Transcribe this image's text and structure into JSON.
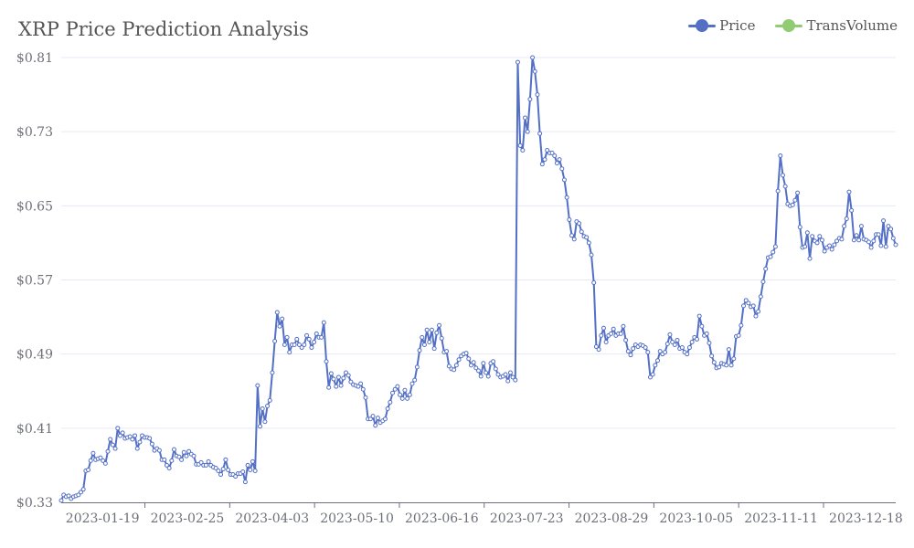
{
  "title": "XRP Price Prediction Analysis",
  "legend": [
    {
      "name": "Price",
      "color": "#5470c6"
    },
    {
      "name": "TransVolume",
      "color": "#91cc75"
    }
  ],
  "chart_data": {
    "type": "line",
    "title": "XRP Price Prediction Analysis",
    "ylim": [
      0.33,
      0.81
    ],
    "y_ticks": [
      "$0.33",
      "$0.41",
      "$0.49",
      "$0.57",
      "$0.65",
      "$0.73",
      "$0.81"
    ],
    "y_tick_values": [
      0.33,
      0.41,
      0.49,
      0.57,
      0.65,
      0.73,
      0.81
    ],
    "x_ticks": [
      "2023-01-19",
      "2023-02-25",
      "2023-04-03",
      "2023-05-10",
      "2023-06-16",
      "2023-07-23",
      "2023-08-29",
      "2023-10-05",
      "2023-11-11",
      "2023-12-18"
    ],
    "x_start": "2023-01-01",
    "x_end": "2023-12-31",
    "grid": true,
    "legend_position": "top-right",
    "series": [
      {
        "name": "Price",
        "color": "#5470c6",
        "values": [
          0.332,
          0.338,
          0.336,
          0.337,
          0.334,
          0.336,
          0.337,
          0.338,
          0.341,
          0.344,
          0.364,
          0.365,
          0.375,
          0.383,
          0.376,
          0.377,
          0.378,
          0.375,
          0.372,
          0.385,
          0.398,
          0.392,
          0.388,
          0.41,
          0.402,
          0.405,
          0.399,
          0.4,
          0.401,
          0.398,
          0.402,
          0.388,
          0.395,
          0.402,
          0.4,
          0.4,
          0.399,
          0.393,
          0.386,
          0.388,
          0.386,
          0.376,
          0.376,
          0.37,
          0.367,
          0.375,
          0.387,
          0.38,
          0.379,
          0.376,
          0.384,
          0.38,
          0.385,
          0.382,
          0.38,
          0.371,
          0.371,
          0.373,
          0.37,
          0.37,
          0.374,
          0.37,
          0.368,
          0.367,
          0.364,
          0.36,
          0.366,
          0.376,
          0.365,
          0.36,
          0.36,
          0.358,
          0.361,
          0.361,
          0.363,
          0.352,
          0.37,
          0.365,
          0.374,
          0.364,
          0.456,
          0.412,
          0.431,
          0.417,
          0.434,
          0.44,
          0.47,
          0.504,
          0.535,
          0.52,
          0.528,
          0.5,
          0.508,
          0.492,
          0.5,
          0.5,
          0.506,
          0.5,
          0.497,
          0.5,
          0.51,
          0.506,
          0.497,
          0.503,
          0.512,
          0.508,
          0.508,
          0.524,
          0.482,
          0.454,
          0.469,
          0.463,
          0.455,
          0.465,
          0.456,
          0.464,
          0.47,
          0.467,
          0.46,
          0.457,
          0.456,
          0.455,
          0.458,
          0.452,
          0.443,
          0.42,
          0.42,
          0.423,
          0.413,
          0.421,
          0.416,
          0.418,
          0.42,
          0.431,
          0.438,
          0.448,
          0.452,
          0.455,
          0.446,
          0.442,
          0.451,
          0.442,
          0.446,
          0.458,
          0.462,
          0.476,
          0.494,
          0.508,
          0.5,
          0.516,
          0.503,
          0.516,
          0.496,
          0.513,
          0.521,
          0.507,
          0.492,
          0.493,
          0.477,
          0.474,
          0.473,
          0.478,
          0.484,
          0.488,
          0.49,
          0.491,
          0.485,
          0.478,
          0.481,
          0.475,
          0.472,
          0.466,
          0.48,
          0.47,
          0.466,
          0.48,
          0.482,
          0.474,
          0.468,
          0.465,
          0.466,
          0.468,
          0.461,
          0.47,
          0.465,
          0.462,
          0.805,
          0.715,
          0.71,
          0.745,
          0.73,
          0.765,
          0.81,
          0.795,
          0.77,
          0.728,
          0.695,
          0.7,
          0.71,
          0.707,
          0.707,
          0.704,
          0.696,
          0.7,
          0.69,
          0.678,
          0.659,
          0.635,
          0.618,
          0.614,
          0.633,
          0.631,
          0.622,
          0.617,
          0.616,
          0.61,
          0.597,
          0.567,
          0.498,
          0.495,
          0.51,
          0.518,
          0.503,
          0.51,
          0.512,
          0.517,
          0.51,
          0.512,
          0.512,
          0.52,
          0.505,
          0.493,
          0.489,
          0.496,
          0.5,
          0.498,
          0.5,
          0.499,
          0.497,
          0.492,
          0.465,
          0.468,
          0.478,
          0.483,
          0.493,
          0.49,
          0.492,
          0.501,
          0.511,
          0.503,
          0.5,
          0.505,
          0.496,
          0.497,
          0.492,
          0.49,
          0.497,
          0.503,
          0.508,
          0.506,
          0.531,
          0.52,
          0.51,
          0.512,
          0.502,
          0.488,
          0.481,
          0.475,
          0.476,
          0.48,
          0.479,
          0.478,
          0.495,
          0.478,
          0.485,
          0.509,
          0.51,
          0.521,
          0.542,
          0.548,
          0.545,
          0.541,
          0.542,
          0.531,
          0.536,
          0.552,
          0.568,
          0.582,
          0.594,
          0.595,
          0.6,
          0.606,
          0.666,
          0.704,
          0.683,
          0.671,
          0.652,
          0.65,
          0.651,
          0.656,
          0.664,
          0.627,
          0.605,
          0.606,
          0.621,
          0.593,
          0.617,
          0.612,
          0.61,
          0.617,
          0.613,
          0.601,
          0.605,
          0.607,
          0.603,
          0.608,
          0.612,
          0.615,
          0.614,
          0.628,
          0.636,
          0.665,
          0.645,
          0.613,
          0.618,
          0.613,
          0.628,
          0.614,
          0.613,
          0.611,
          0.605,
          0.612,
          0.619,
          0.619,
          0.607,
          0.634,
          0.606,
          0.628,
          0.625,
          0.615,
          0.608
        ]
      },
      {
        "name": "TransVolume",
        "color": "#91cc75",
        "values": []
      }
    ]
  }
}
